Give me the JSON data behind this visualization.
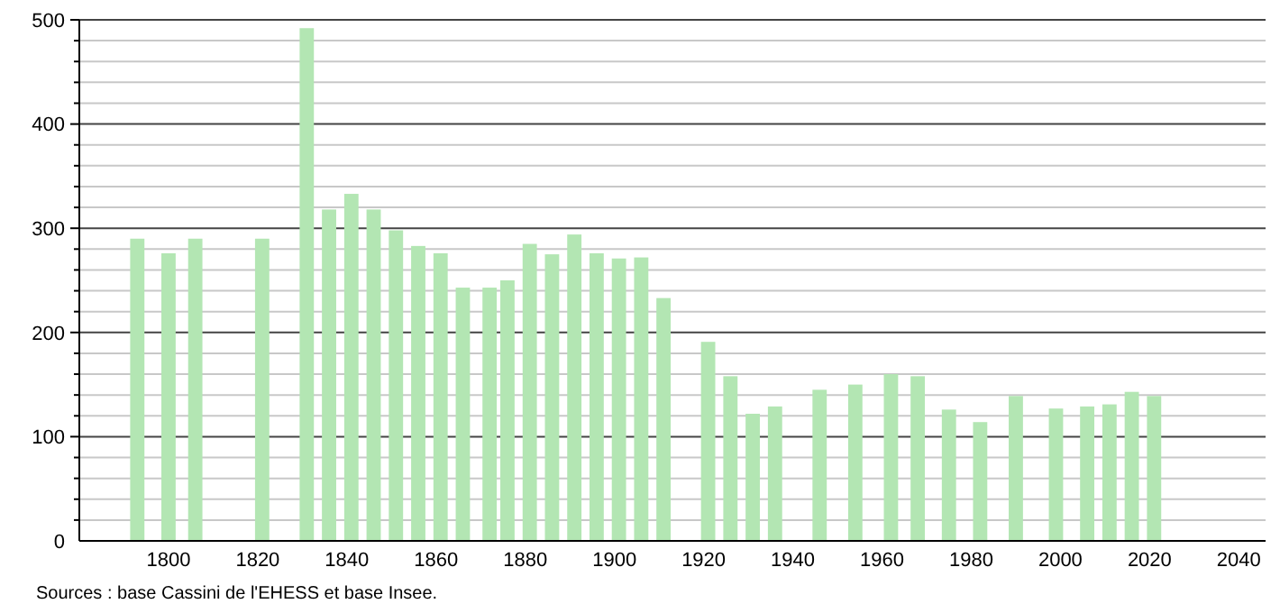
{
  "chart_data": {
    "type": "bar",
    "x": [
      1793,
      1800,
      1806,
      1821,
      1831,
      1836,
      1841,
      1846,
      1851,
      1856,
      1861,
      1866,
      1872,
      1876,
      1881,
      1886,
      1891,
      1896,
      1901,
      1906,
      1911,
      1921,
      1926,
      1931,
      1936,
      1946,
      1954,
      1962,
      1968,
      1975,
      1982,
      1990,
      1999,
      2006,
      2011,
      2016,
      2021
    ],
    "values": [
      290,
      276,
      290,
      290,
      492,
      318,
      333,
      318,
      298,
      283,
      276,
      243,
      243,
      250,
      285,
      275,
      294,
      276,
      271,
      272,
      233,
      191,
      158,
      122,
      129,
      145,
      150,
      160,
      158,
      126,
      114,
      139,
      127,
      129,
      131,
      143,
      139
    ],
    "color": "#b3e6b3",
    "xlim": [
      1780,
      2046
    ],
    "xticks": [
      1800,
      1820,
      1840,
      1860,
      1880,
      1900,
      1920,
      1940,
      1960,
      1980,
      2000,
      2020,
      2040
    ],
    "ylim": [
      0,
      500
    ],
    "yticks": [
      0,
      {
        "value": 20,
        "label": null
      },
      {
        "value": 40,
        "label": null
      },
      {
        "value": 60,
        "label": null
      },
      {
        "value": 80,
        "label": null
      },
      100,
      {
        "value": 120,
        "label": null
      },
      {
        "value": 140,
        "label": null
      },
      {
        "value": 160,
        "label": null
      },
      {
        "value": 180,
        "label": null
      },
      200,
      {
        "value": 220,
        "label": null
      },
      {
        "value": 240,
        "label": null
      },
      {
        "value": 260,
        "label": null
      },
      {
        "value": 280,
        "label": null
      },
      300,
      {
        "value": 320,
        "label": null
      },
      {
        "value": 340,
        "label": null
      },
      {
        "value": 360,
        "label": null
      },
      {
        "value": 380,
        "label": null
      },
      400,
      {
        "value": 420,
        "label": null
      },
      {
        "value": 440,
        "label": null
      },
      {
        "value": 460,
        "label": null
      },
      {
        "value": 480,
        "label": null
      },
      500
    ],
    "grid": "y",
    "annotations": [
      "Sources : base Cassini de l'EHESS et base Insee."
    ]
  }
}
